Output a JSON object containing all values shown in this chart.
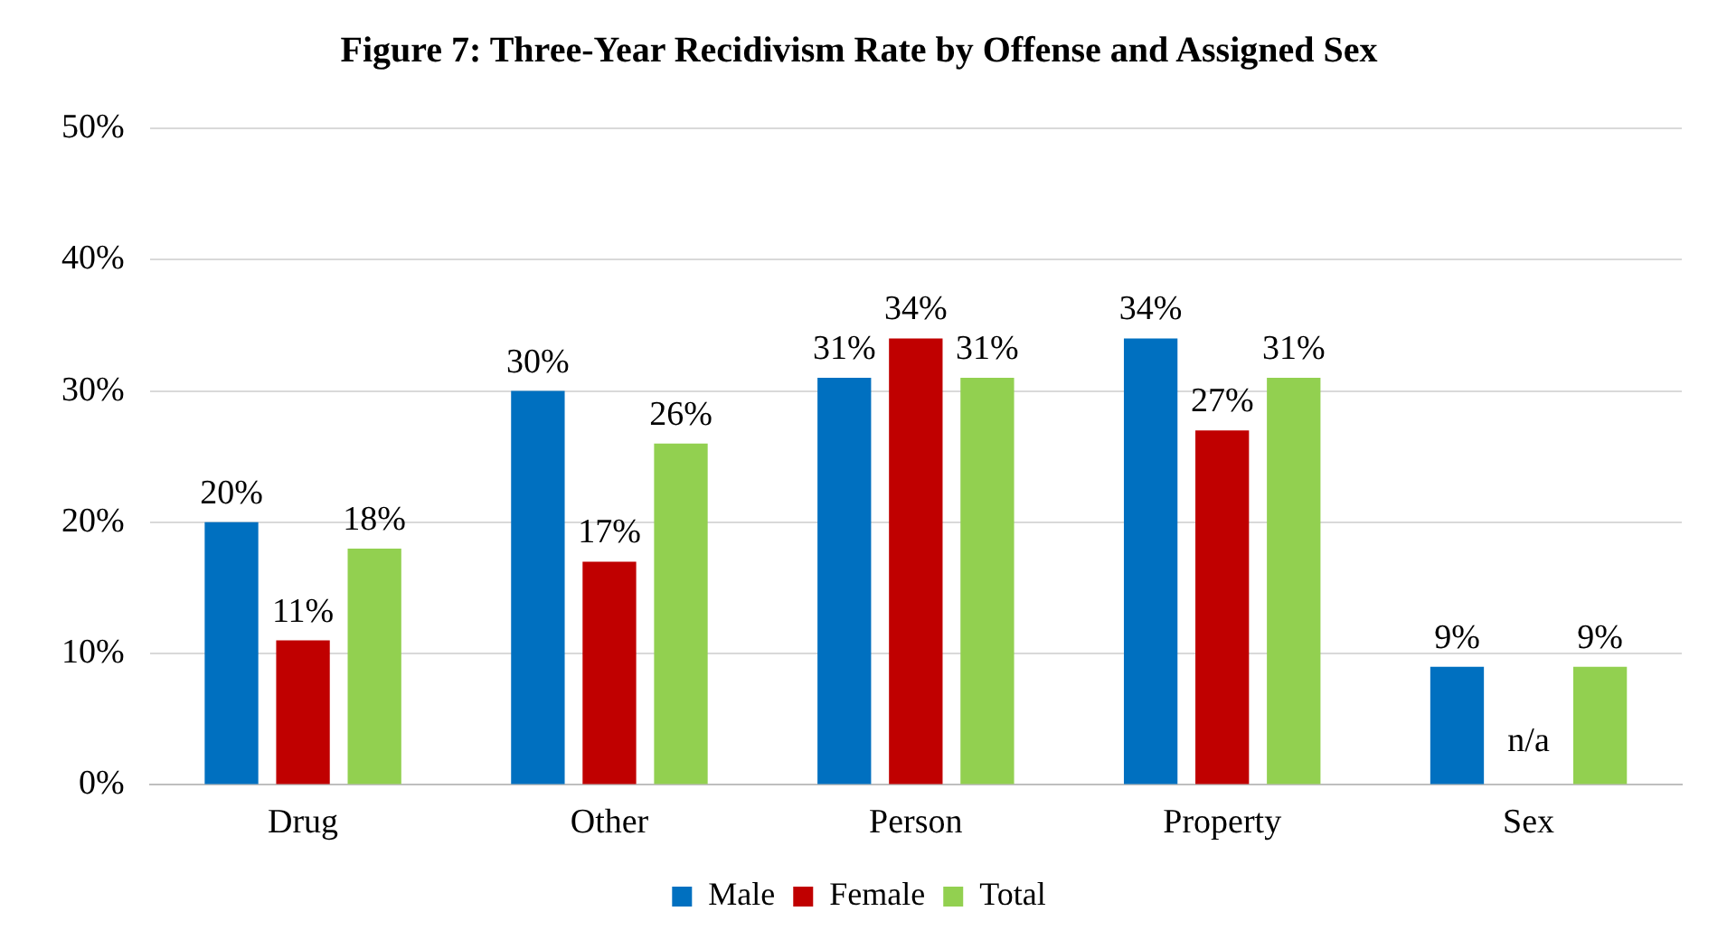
{
  "chart_data": {
    "type": "bar",
    "title": "Figure 7: Three-Year Recidivism Rate by Offense and Assigned Sex",
    "categories": [
      "Drug",
      "Other",
      "Person",
      "Property",
      "Sex"
    ],
    "series": [
      {
        "name": "Male",
        "color": "#0070c0",
        "values": [
          20,
          30,
          31,
          34,
          9
        ],
        "value_labels": [
          "20%",
          "30%",
          "31%",
          "34%",
          "9%"
        ]
      },
      {
        "name": "Female",
        "color": "#c00000",
        "values": [
          11,
          17,
          34,
          27,
          null
        ],
        "value_labels": [
          "11%",
          "17%",
          "34%",
          "27%",
          "n/a"
        ]
      },
      {
        "name": "Total",
        "color": "#92d050",
        "values": [
          18,
          26,
          31,
          31,
          9
        ],
        "value_labels": [
          "18%",
          "26%",
          "31%",
          "31%",
          "9%"
        ]
      }
    ],
    "ylim": [
      0,
      50
    ],
    "yticks": [
      {
        "value": 0,
        "label": "0%"
      },
      {
        "value": 10,
        "label": "10%"
      },
      {
        "value": 20,
        "label": "20%"
      },
      {
        "value": 30,
        "label": "30%"
      },
      {
        "value": 40,
        "label": "40%"
      },
      {
        "value": 50,
        "label": "50%"
      }
    ],
    "grid": "y",
    "legend": "bottom"
  }
}
